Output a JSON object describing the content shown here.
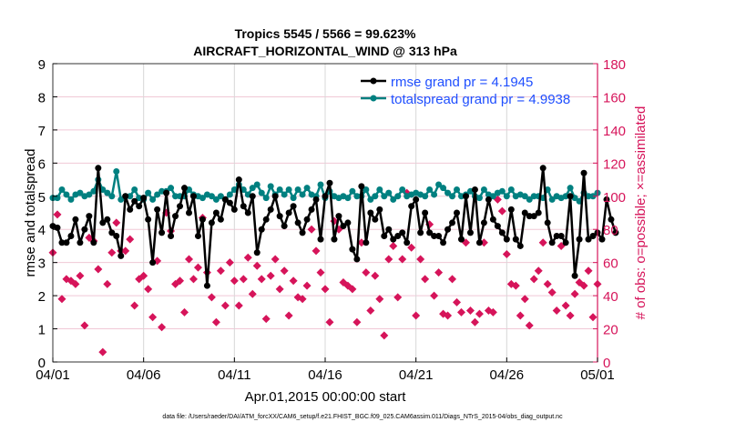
{
  "chart_data": {
    "type": "line",
    "title": "Tropics 5545 / 5566 = 99.623%",
    "subtitle": "AIRCRAFT_HORIZONTAL_WIND @ 313 hPa",
    "xlabel": "Apr.01,2015 00:00:00 start",
    "ylabel": "rmse and totalspread",
    "ylabel_right": "# of obs: o=possible; ×=assimilated",
    "footnote": "data file: /Users/raeder/DAI/ATM_forcXX/CAM6_setup/f.e21.FHIST_BGC.f09_025.CAM6assim.011/Diags_NTrS_2015-04/obs_diag_output.nc",
    "x_start": "2015-04-01",
    "x_step_hours": 6,
    "x_ticks": [
      "04/01",
      "04/06",
      "04/11",
      "04/16",
      "04/21",
      "04/26",
      "05/01"
    ],
    "ylim": [
      0,
      9
    ],
    "y_ticks": [
      0,
      1,
      2,
      3,
      4,
      5,
      6,
      7,
      8,
      9
    ],
    "ylim_right": [
      0,
      180
    ],
    "y_ticks_right": [
      0,
      20,
      40,
      60,
      80,
      100,
      120,
      140,
      160,
      180
    ],
    "grid": true,
    "legend_placement": "top-right",
    "colors": {
      "rmse": "#000000",
      "totalspread": "#008080",
      "obs": "#d6145a",
      "legend_text": "#1f4fff"
    },
    "series": [
      {
        "name": "rmse grand pr = 4.1945",
        "values": [
          4.1,
          4.05,
          3.6,
          3.6,
          3.8,
          4.3,
          3.6,
          4.0,
          4.4,
          3.6,
          5.85,
          4.2,
          4.3,
          3.9,
          3.8,
          3.2,
          5.0,
          4.6,
          4.85,
          4.7,
          4.95,
          4.3,
          3.0,
          4.6,
          3.9,
          5.1,
          3.8,
          4.4,
          4.7,
          5.25,
          4.5,
          5.0,
          3.8,
          4.3,
          2.3,
          4.2,
          4.5,
          4.3,
          4.9,
          4.8,
          4.6,
          5.5,
          4.7,
          4.5,
          5.0,
          3.3,
          4.0,
          4.3,
          4.6,
          5.0,
          4.4,
          4.1,
          4.5,
          4.7,
          4.2,
          3.9,
          4.3,
          4.6,
          4.9,
          3.7,
          5.0,
          5.4,
          3.7,
          4.4,
          4.1,
          4.2,
          3.4,
          3.1,
          5.3,
          3.6,
          4.5,
          4.3,
          4.6,
          3.8,
          4.0,
          3.7,
          3.8,
          3.9,
          3.6,
          4.7,
          4.9,
          3.9,
          4.5,
          3.9,
          3.8,
          3.8,
          3.6,
          4.0,
          4.2,
          4.5,
          3.7,
          5.0,
          3.9,
          5.2,
          3.6,
          4.2,
          4.9,
          4.3,
          4.1,
          3.9,
          3.7,
          4.6,
          3.7,
          3.5,
          4.5,
          4.4,
          4.4,
          4.5,
          5.85,
          4.2,
          3.6,
          3.8,
          3.8,
          3.6,
          5.0,
          2.6,
          3.7,
          5.7,
          3.7,
          3.8,
          3.9,
          3.7,
          4.9,
          4.3,
          3.9
        ]
      },
      {
        "name": "totalspread grand pr = 4.9938",
        "values": [
          4.95,
          4.95,
          5.2,
          5.05,
          4.9,
          5.05,
          5.1,
          5.0,
          5.05,
          5.15,
          5.5,
          5.2,
          5.1,
          5.0,
          5.75,
          4.9,
          5.0,
          5.0,
          5.2,
          4.95,
          4.9,
          5.1,
          4.9,
          5.05,
          5.15,
          5.15,
          5.25,
          5.0,
          5.0,
          5.0,
          5.2,
          5.05,
          5.0,
          4.95,
          5.05,
          5.0,
          4.9,
          5.0,
          4.9,
          5.05,
          5.2,
          5.35,
          5.2,
          5.05,
          5.25,
          5.35,
          5.1,
          4.95,
          5.3,
          5.05,
          5.2,
          5.05,
          5.2,
          4.95,
          5.2,
          5.05,
          5.25,
          5.05,
          5.0,
          5.35,
          4.95,
          5.15,
          5.0,
          4.95,
          5.0,
          4.95,
          5.15,
          5.0,
          5.0,
          5.2,
          4.9,
          5.0,
          5.2,
          5.0,
          5.1,
          4.9,
          5.0,
          5.2,
          5.0,
          5.05,
          5.1,
          5.05,
          5.0,
          5.2,
          5.05,
          5.35,
          5.25,
          5.1,
          5.0,
          5.2,
          5.0,
          5.05,
          5.15,
          5.0,
          4.95,
          5.2,
          5.05,
          5.0,
          5.1,
          5.15,
          5.0,
          5.2,
          5.0,
          5.05,
          5.0,
          4.9,
          5.0,
          5.0,
          4.95,
          5.2,
          4.9,
          5.0,
          4.95,
          5.0,
          5.25,
          4.95,
          4.85,
          5.1,
          5.0,
          5.0,
          5.1
        ]
      }
    ],
    "obs_possible": [
      66,
      89,
      38,
      50,
      49,
      47,
      52,
      22,
      75,
      73,
      56,
      6,
      47,
      66,
      84,
      67,
      67,
      74,
      34,
      50,
      52,
      44,
      27,
      61,
      21,
      90,
      79,
      47,
      49,
      30,
      62,
      50,
      57,
      87,
      54,
      39,
      24,
      55,
      34,
      60,
      49,
      34,
      50,
      63,
      41,
      58,
      50,
      26,
      52,
      62,
      44,
      55,
      28,
      49,
      39,
      38,
      46,
      80,
      67,
      54,
      44,
      24,
      85,
      80,
      48,
      46,
      44,
      24,
      72,
      54,
      31,
      52,
      38,
      16,
      62,
      70,
      39,
      62,
      102,
      69,
      28,
      62,
      50,
      83,
      40,
      54,
      29,
      28,
      50,
      36,
      30,
      72,
      31,
      24,
      29,
      72,
      31,
      30,
      98,
      91,
      65,
      47,
      46,
      28,
      38,
      22,
      50,
      55,
      72,
      47,
      42,
      31,
      70,
      34,
      28,
      41,
      48,
      46,
      55,
      27,
      47
    ],
    "obs_assimilated": [
      66,
      89,
      38,
      50,
      49,
      47,
      52,
      22,
      75,
      73,
      56,
      6,
      47,
      66,
      84,
      67,
      67,
      74,
      34,
      50,
      52,
      44,
      27,
      61,
      21,
      90,
      79,
      47,
      49,
      30,
      62,
      50,
      57,
      87,
      54,
      39,
      24,
      55,
      34,
      60,
      49,
      34,
      50,
      63,
      41,
      58,
      50,
      26,
      52,
      62,
      44,
      55,
      28,
      49,
      39,
      38,
      46,
      80,
      67,
      54,
      44,
      24,
      85,
      80,
      48,
      46,
      44,
      24,
      72,
      54,
      31,
      52,
      38,
      16,
      62,
      70,
      39,
      62,
      102,
      69,
      28,
      62,
      50,
      83,
      40,
      54,
      29,
      28,
      50,
      36,
      30,
      72,
      31,
      24,
      29,
      72,
      31,
      30,
      98,
      91,
      65,
      47,
      46,
      28,
      38,
      22,
      50,
      55,
      72,
      47,
      42,
      31,
      70,
      34,
      28,
      41,
      48,
      46,
      55,
      27,
      47
    ]
  }
}
